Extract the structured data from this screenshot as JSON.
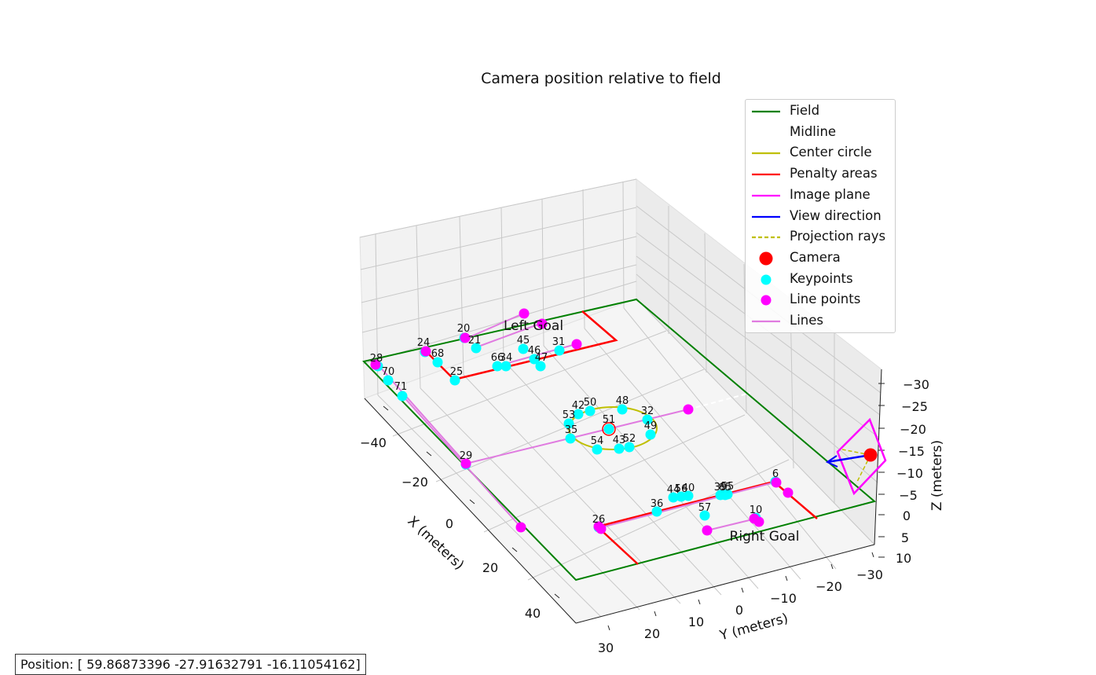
{
  "chart_data": {
    "type": "scatter",
    "title": "Camera position relative to field",
    "xlabel": "X (meters)",
    "ylabel": "Y (meters)",
    "zlabel": "Z (meters)",
    "x_ticks": [
      "−40",
      "−20",
      "0",
      "20",
      "40"
    ],
    "y_ticks": [
      "30",
      "20",
      "10",
      "0",
      "−10",
      "−20",
      "−30"
    ],
    "z_ticks": [
      "−30",
      "−25",
      "−20",
      "−15",
      "−10",
      "−5",
      "0",
      "5",
      "10"
    ],
    "grid": true,
    "legend_placement": "top-right",
    "legend": [
      {
        "label": "Field",
        "kind": "line",
        "color": "#008000",
        "dash": false
      },
      {
        "label": "Midline",
        "kind": "line",
        "color": "#ffffff",
        "dash": false
      },
      {
        "label": "Center circle",
        "kind": "line",
        "color": "#bfbf00",
        "dash": false
      },
      {
        "label": "Penalty areas",
        "kind": "line",
        "color": "#ff0000",
        "dash": false
      },
      {
        "label": "Image plane",
        "kind": "line",
        "color": "#ff00ff",
        "dash": false
      },
      {
        "label": "View direction",
        "kind": "line",
        "color": "#0000ff",
        "dash": false
      },
      {
        "label": "Projection rays",
        "kind": "line",
        "color": "#bfbf00",
        "dash": true
      },
      {
        "label": "Camera",
        "kind": "marker",
        "color": "#ff0000"
      },
      {
        "label": "Keypoints",
        "kind": "marker",
        "color": "#00ffff"
      },
      {
        "label": "Line points",
        "kind": "marker",
        "color": "#ff00ff"
      },
      {
        "label": "Lines",
        "kind": "line",
        "color": "#e07be0",
        "dash": false
      }
    ],
    "annotations": [
      "Left Goal",
      "Right Goal"
    ],
    "camera_position": [
      59.86873396,
      -27.91632791,
      -16.11054162
    ],
    "keypoints": [
      {
        "label": "28"
      },
      {
        "label": "70"
      },
      {
        "label": "71"
      },
      {
        "label": "24"
      },
      {
        "label": "68"
      },
      {
        "label": "25"
      },
      {
        "label": "20"
      },
      {
        "label": "21"
      },
      {
        "label": "66"
      },
      {
        "label": "34"
      },
      {
        "label": "45"
      },
      {
        "label": "46"
      },
      {
        "label": "47"
      },
      {
        "label": "31"
      },
      {
        "label": "42"
      },
      {
        "label": "50"
      },
      {
        "label": "48"
      },
      {
        "label": "32"
      },
      {
        "label": "53"
      },
      {
        "label": "51"
      },
      {
        "label": "49"
      },
      {
        "label": "35"
      },
      {
        "label": "54"
      },
      {
        "label": "43"
      },
      {
        "label": "52"
      },
      {
        "label": "29"
      },
      {
        "label": "44"
      },
      {
        "label": "56"
      },
      {
        "label": "40"
      },
      {
        "label": "55"
      },
      {
        "label": "36"
      },
      {
        "label": "39"
      },
      {
        "label": "65"
      },
      {
        "label": "57"
      },
      {
        "label": "26"
      },
      {
        "label": "6"
      },
      {
        "label": "10"
      }
    ]
  },
  "status": {
    "position_text": "Position: [ 59.86873396 -27.91632791 -16.11054162]"
  }
}
